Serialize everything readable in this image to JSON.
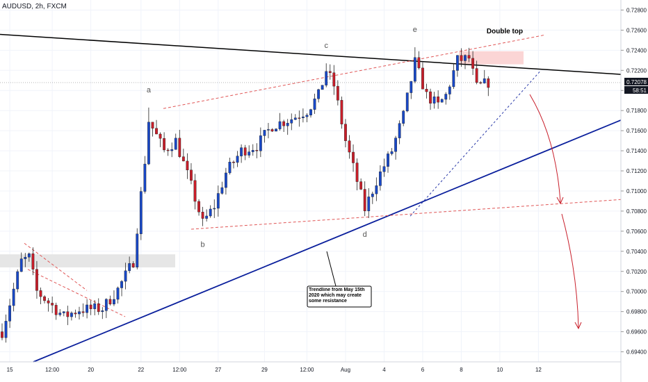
{
  "header": {
    "symbol": "AUDUSD, 2h, FXCM"
  },
  "chart_data": {
    "type": "candlestick",
    "ylim": [
      0.693,
      0.729
    ],
    "y_ticks": [
      "0.72800",
      "0.72600",
      "0.72400",
      "0.72200",
      "0.72000",
      "0.71800",
      "0.71600",
      "0.71400",
      "0.71200",
      "0.71000",
      "0.70800",
      "0.70600",
      "0.70400",
      "0.70200",
      "0.70000",
      "0.69800",
      "0.69600",
      "0.69400"
    ],
    "y_tick_values": [
      0.728,
      0.726,
      0.724,
      0.722,
      0.72,
      0.718,
      0.716,
      0.714,
      0.712,
      0.71,
      0.708,
      0.706,
      0.704,
      0.702,
      0.7,
      0.698,
      0.696,
      0.694
    ],
    "x_ticks": [
      "15",
      "12:00",
      "20",
      "22",
      "12:00",
      "27",
      "29",
      "12:00",
      "Aug",
      "4",
      "6",
      "8",
      "10",
      "12"
    ],
    "x_tick_index": [
      2,
      13,
      23,
      36,
      46,
      56,
      68,
      79,
      89,
      99,
      109,
      119,
      129,
      139
    ],
    "n_bars": 150,
    "price_label": "0.72078",
    "price_value": 0.72078,
    "countdown": "58:51",
    "pivots": [
      {
        "label": "a",
        "index": 38,
        "price": 0.7183
      },
      {
        "label": "b",
        "index": 52,
        "price": 0.7065
      },
      {
        "label": "c",
        "index": 84,
        "price": 0.7227
      },
      {
        "label": "d",
        "index": 94,
        "price": 0.7075
      },
      {
        "label": "e",
        "index": 107,
        "price": 0.7243
      }
    ],
    "candles": [],
    "annotations": {
      "double_top": "Double top",
      "trendline_note": "Trendline from May 15th 2020 which may create some resistance"
    },
    "colors": {
      "up": "#1848c8",
      "down": "#c81e2a",
      "trend": "#0a1f9c",
      "resistance": "#000000",
      "channel": "#e05555"
    }
  }
}
